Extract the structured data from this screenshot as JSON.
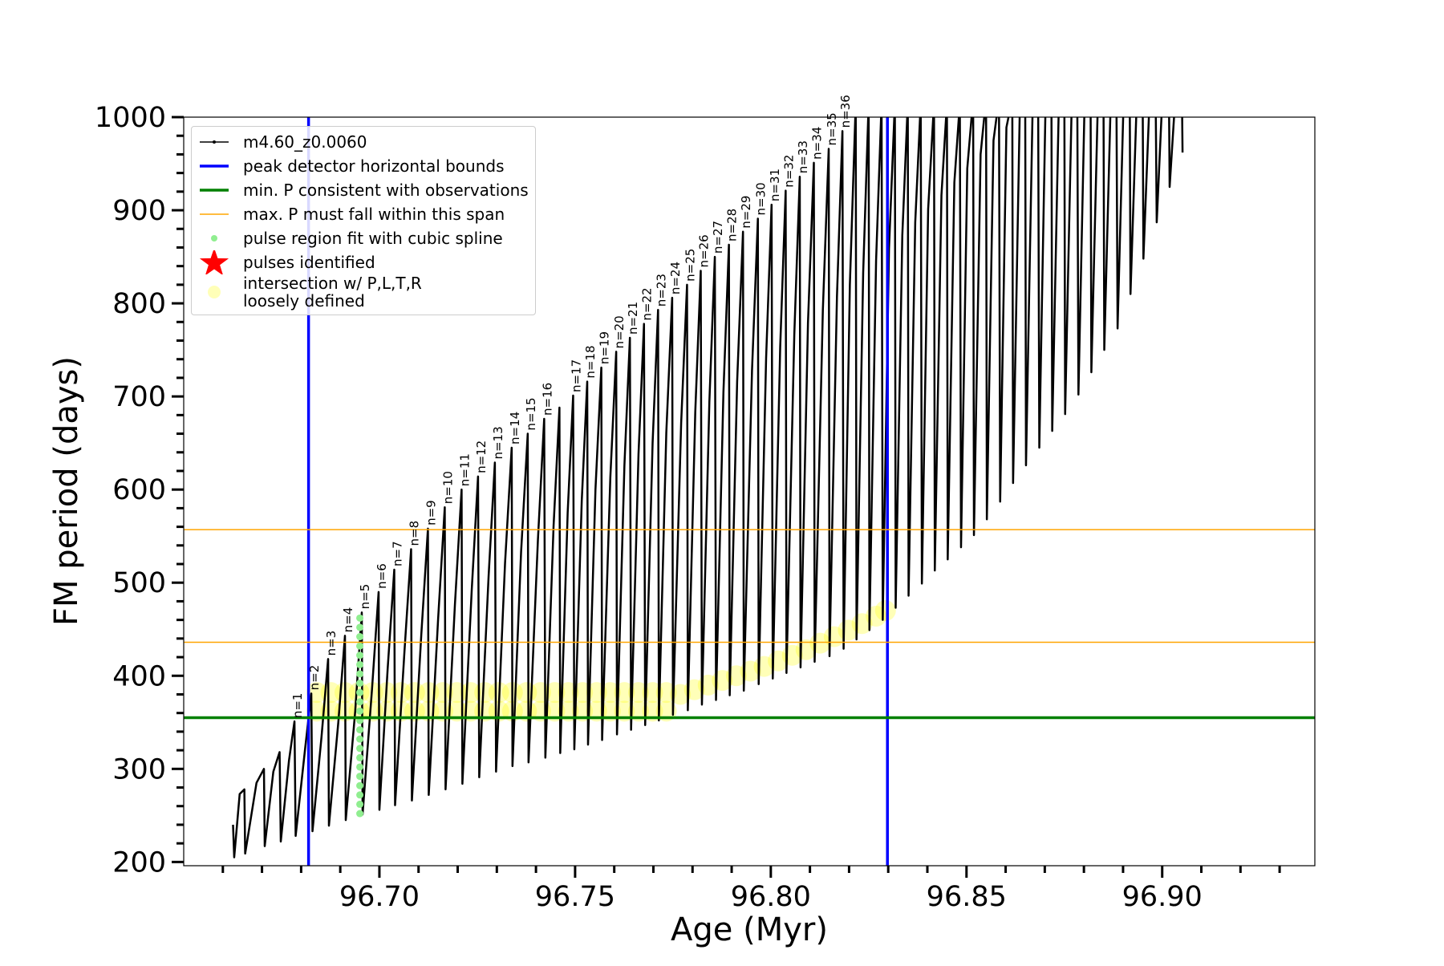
{
  "chart_data": {
    "type": "line",
    "xlabel": "Age (Myr)",
    "ylabel": "FM period (days)",
    "xlim": [
      96.65,
      96.939
    ],
    "ylim": [
      196,
      1000
    ],
    "xticks": [
      {
        "value": 96.7,
        "label": "96.70"
      },
      {
        "value": 96.75,
        "label": "96.75"
      },
      {
        "value": 96.8,
        "label": "96.80"
      },
      {
        "value": 96.85,
        "label": "96.85"
      },
      {
        "value": 96.9,
        "label": "96.90"
      }
    ],
    "yticks": [
      200,
      300,
      400,
      500,
      600,
      700,
      800,
      900,
      1000
    ],
    "xminorticks": [
      96.66,
      96.67,
      96.68,
      96.69,
      96.71,
      96.72,
      96.73,
      96.74,
      96.76,
      96.77,
      96.78,
      96.79,
      96.81,
      96.82,
      96.83,
      96.84,
      96.86,
      96.87,
      96.88,
      96.89,
      96.91,
      96.92,
      96.93
    ],
    "yminorticks": [
      220,
      240,
      260,
      280,
      320,
      340,
      360,
      380,
      420,
      440,
      460,
      480,
      520,
      540,
      560,
      580,
      620,
      640,
      660,
      680,
      720,
      740,
      760,
      780,
      820,
      840,
      860,
      880,
      920,
      940,
      960,
      980
    ],
    "series": [
      {
        "name": "m4.60_z0.0060",
        "kind": "line",
        "color": "#000000",
        "linewidth": 2.5,
        "x": [
          96.6626,
          96.6629,
          96.6643,
          96.6655,
          96.6657,
          96.6686,
          96.6705,
          96.6707,
          96.6729,
          96.6745,
          96.6748,
          96.6769,
          96.6783,
          96.6786,
          96.681,
          96.6826,
          96.6829,
          96.6852,
          96.6869,
          96.6871,
          96.6895,
          96.6912,
          96.6914,
          96.6938,
          96.6955,
          96.6957,
          96.6981,
          96.6998,
          96.7,
          96.7021,
          96.7038,
          96.704,
          96.7064,
          96.7081,
          96.7083,
          96.7107,
          96.7124,
          96.7126,
          96.715,
          96.7167,
          96.7169,
          96.7193,
          96.721,
          96.7212,
          96.7236,
          96.7252,
          96.7255,
          96.7279,
          96.7295,
          96.7298,
          96.7321,
          96.7338,
          96.734,
          96.7362,
          96.7379,
          96.7381,
          96.7405,
          96.7421,
          96.7424,
          96.7445,
          96.746,
          96.7462,
          96.7481,
          96.7495,
          96.7498,
          96.7517,
          96.7531,
          96.7533,
          96.7552,
          96.7567,
          96.7569,
          96.759,
          96.7605,
          96.7607,
          96.7626,
          96.764,
          96.7643,
          96.7662,
          96.7676,
          96.7679,
          96.7698,
          96.7712,
          96.7714,
          96.7733,
          96.7748,
          96.775,
          96.7771,
          96.7786,
          96.7788,
          96.7807,
          96.7821,
          96.7824,
          96.7843,
          96.7857,
          96.786,
          96.7879,
          96.7893,
          96.7895,
          96.7914,
          96.7929,
          96.7931,
          96.7952,
          96.7967,
          96.7969,
          96.7988,
          96.8002,
          96.8005,
          96.8024,
          96.8038,
          96.804,
          96.806,
          96.8074,
          96.8076,
          96.8095,
          96.811,
          96.8112,
          96.8133,
          96.8148,
          96.815,
          96.8169,
          96.8183,
          96.8186,
          96.8202,
          96.8217,
          96.8219,
          96.8236,
          96.825,
          96.8252,
          96.8269,
          96.8283,
          96.8286,
          96.8302,
          96.8317,
          96.8319,
          96.8336,
          96.835,
          96.8352,
          96.8369,
          96.8383,
          96.8386,
          96.8402,
          96.8417,
          96.8419,
          96.8436,
          96.845,
          96.8452,
          96.8469,
          96.8483,
          96.8486,
          96.8502,
          96.8517,
          96.8519,
          96.8536,
          96.855,
          96.8552,
          96.8569,
          96.8583,
          96.8586,
          96.8602,
          96.8617,
          96.8619,
          96.8636,
          96.865,
          96.8652,
          96.8669,
          96.8683,
          96.8686,
          96.8702,
          96.8717,
          96.8719,
          96.8736,
          96.875,
          96.8752,
          96.8769,
          96.8783,
          96.8786,
          96.8802,
          96.8817,
          96.8819,
          96.8836,
          96.885,
          96.8852,
          96.8869,
          96.8883,
          96.8886,
          96.8902,
          96.8917,
          96.8919,
          96.8936,
          96.895,
          96.8952,
          96.8969,
          96.8983,
          96.8986,
          96.9002,
          96.9017,
          96.9019,
          96.9036,
          96.905,
          96.9052
        ],
        "values": [
          240,
          205,
          273,
          278,
          209,
          285,
          300,
          217,
          297,
          318,
          222,
          309,
          351,
          228,
          321,
          381,
          233,
          334,
          418,
          239,
          350,
          443,
          245,
          361,
          468,
          251,
          385,
          490,
          256,
          407,
          514,
          261,
          426,
          536,
          266,
          444,
          558,
          272,
          461,
          581,
          278,
          477,
          600,
          284,
          493,
          614,
          291,
          507,
          629,
          297,
          521,
          645,
          303,
          533,
          660,
          307,
          546,
          676,
          312,
          561,
          688,
          317,
          575,
          701,
          321,
          588,
          716,
          326,
          600,
          731,
          331,
          613,
          748,
          337,
          626,
          763,
          342,
          638,
          778,
          347,
          650,
          793,
          352,
          661,
          806,
          358,
          672,
          820,
          363,
          683,
          835,
          369,
          694,
          850,
          374,
          705,
          863,
          379,
          716,
          877,
          384,
          728,
          891,
          391,
          741,
          906,
          397,
          753,
          921,
          403,
          766,
          936,
          409,
          779,
          951,
          415,
          793,
          966,
          421,
          807,
          985,
          429,
          820,
          1015,
          439,
          833,
          1015,
          449,
          846,
          1015,
          460,
          859,
          1015,
          473,
          873,
          1015,
          486,
          887,
          1015,
          499,
          901,
          1015,
          513,
          916,
          1015,
          525,
          930,
          1015,
          538,
          945,
          1020,
          551,
          960,
          1020,
          568,
          975,
          1020,
          587,
          989,
          1020,
          607,
          1004,
          1020,
          626,
          1011,
          1025,
          645,
          1014,
          1025,
          663,
          1016,
          1025,
          681,
          1018,
          1025,
          702,
          1021,
          1030,
          726,
          1023,
          1030,
          750,
          1026,
          1030,
          773,
          1028,
          1035,
          810,
          1031,
          1035,
          848,
          1033,
          1035,
          887,
          1036,
          1040,
          925,
          1038,
          1040,
          962
        ]
      },
      {
        "name": "peak detector horizontal bounds",
        "kind": "vline",
        "color": "#0000ff",
        "linewidth": 3.5,
        "x": [
          96.6819,
          96.8298
        ]
      },
      {
        "name": "min. P consistent with observations",
        "kind": "hline",
        "color": "#008000",
        "linewidth": 3.5,
        "values": [
          355
        ]
      },
      {
        "name": "max. P must fall within this span",
        "kind": "hline",
        "color": "#ffa500",
        "linewidth": 1.5,
        "values": [
          436,
          557
        ]
      },
      {
        "name": "pulse region fit with cubic spline",
        "kind": "scatter",
        "color": "#90ee90",
        "alpha": 1,
        "x": [
          96.695,
          96.695,
          96.695,
          96.695,
          96.695,
          96.695,
          96.695,
          96.695,
          96.695,
          96.695,
          96.695,
          96.695,
          96.695,
          96.695,
          96.695,
          96.695,
          96.695,
          96.695,
          96.695,
          96.695,
          96.695,
          96.695
        ],
        "values": [
          252,
          262,
          272,
          282,
          292,
          302,
          312,
          322,
          332,
          342,
          352,
          362,
          372,
          382,
          392,
          402,
          412,
          422,
          432,
          442,
          452,
          462
        ]
      },
      {
        "name": "pulses identified",
        "kind": "star",
        "color": "#ff0000"
      },
      {
        "name": "intersection w/ P,L,T,R\nloosely defined",
        "kind": "scatter",
        "color": "#ffff00",
        "alpha": 0.28,
        "x": [
          96.684,
          96.6876,
          96.6912,
          96.6948,
          96.6983,
          96.7019,
          96.7055,
          96.709,
          96.7126,
          96.7162,
          96.7198,
          96.7233,
          96.7269,
          96.7305,
          96.734,
          96.7376,
          96.7412,
          96.7448,
          96.7483,
          96.7519,
          96.7555,
          96.759,
          96.7626,
          96.7662,
          96.7698,
          96.7733,
          96.684,
          96.6876,
          96.6912,
          96.6948,
          96.6983,
          96.7019,
          96.7055,
          96.709,
          96.7126,
          96.7162,
          96.7198,
          96.7233,
          96.7269,
          96.7305,
          96.734,
          96.7376,
          96.7412,
          96.7448,
          96.7483,
          96.7519,
          96.7555,
          96.759,
          96.7626,
          96.7662,
          96.7698,
          96.7733,
          96.7769,
          96.7805,
          96.784,
          96.7876,
          96.7912,
          96.7948,
          96.7983,
          96.8019,
          96.8055,
          96.809,
          96.8126,
          96.8162,
          96.8198,
          96.8233,
          96.8269,
          96.8293
        ],
        "values": [
          362,
          362,
          362,
          362,
          362,
          362,
          362,
          362,
          362,
          362,
          362,
          362,
          362,
          362,
          362,
          362,
          362,
          362,
          362,
          362,
          362,
          362,
          362,
          362,
          362,
          362,
          382,
          382,
          382,
          382,
          382,
          382,
          382,
          382,
          382,
          382,
          382,
          382,
          382,
          382,
          382,
          382,
          382,
          382,
          382,
          382,
          382,
          382,
          382,
          382,
          382,
          382,
          380,
          385,
          390,
          395,
          400,
          405,
          410,
          416,
          422,
          428,
          435,
          442,
          449,
          456,
          464,
          470
        ]
      }
    ],
    "annotations": [
      {
        "text": "n=1",
        "x": 96.6783,
        "y": 351
      },
      {
        "text": "n=2",
        "x": 96.6826,
        "y": 381
      },
      {
        "text": "n=3",
        "x": 96.6869,
        "y": 418
      },
      {
        "text": "n=4",
        "x": 96.6912,
        "y": 443
      },
      {
        "text": "n=5",
        "x": 96.6955,
        "y": 468
      },
      {
        "text": "n=6",
        "x": 96.6998,
        "y": 490
      },
      {
        "text": "n=7",
        "x": 96.7038,
        "y": 514
      },
      {
        "text": "n=8",
        "x": 96.7081,
        "y": 536
      },
      {
        "text": "n=9",
        "x": 96.7124,
        "y": 558
      },
      {
        "text": "n=10",
        "x": 96.7167,
        "y": 581
      },
      {
        "text": "n=11",
        "x": 96.721,
        "y": 600
      },
      {
        "text": "n=12",
        "x": 96.7252,
        "y": 614
      },
      {
        "text": "n=13",
        "x": 96.7295,
        "y": 629
      },
      {
        "text": "n=14",
        "x": 96.7338,
        "y": 645
      },
      {
        "text": "n=15",
        "x": 96.7379,
        "y": 660
      },
      {
        "text": "n=16",
        "x": 96.7421,
        "y": 676
      },
      {
        "text": "n=17",
        "x": 96.7495,
        "y": 701
      },
      {
        "text": "n=18",
        "x": 96.7531,
        "y": 716
      },
      {
        "text": "n=19",
        "x": 96.7567,
        "y": 731
      },
      {
        "text": "n=20",
        "x": 96.7605,
        "y": 748
      },
      {
        "text": "n=21",
        "x": 96.764,
        "y": 763
      },
      {
        "text": "n=22",
        "x": 96.7676,
        "y": 778
      },
      {
        "text": "n=23",
        "x": 96.7712,
        "y": 793
      },
      {
        "text": "n=24",
        "x": 96.7748,
        "y": 806
      },
      {
        "text": "n=25",
        "x": 96.7786,
        "y": 820
      },
      {
        "text": "n=26",
        "x": 96.7821,
        "y": 835
      },
      {
        "text": "n=27",
        "x": 96.7857,
        "y": 850
      },
      {
        "text": "n=28",
        "x": 96.7893,
        "y": 863
      },
      {
        "text": "n=29",
        "x": 96.7929,
        "y": 877
      },
      {
        "text": "n=30",
        "x": 96.7967,
        "y": 891
      },
      {
        "text": "n=31",
        "x": 96.8002,
        "y": 906
      },
      {
        "text": "n=32",
        "x": 96.8038,
        "y": 921
      },
      {
        "text": "n=33",
        "x": 96.8074,
        "y": 936
      },
      {
        "text": "n=34",
        "x": 96.811,
        "y": 951
      },
      {
        "text": "n=35",
        "x": 96.8148,
        "y": 966
      },
      {
        "text": "n=36",
        "x": 96.8183,
        "y": 985
      }
    ]
  }
}
